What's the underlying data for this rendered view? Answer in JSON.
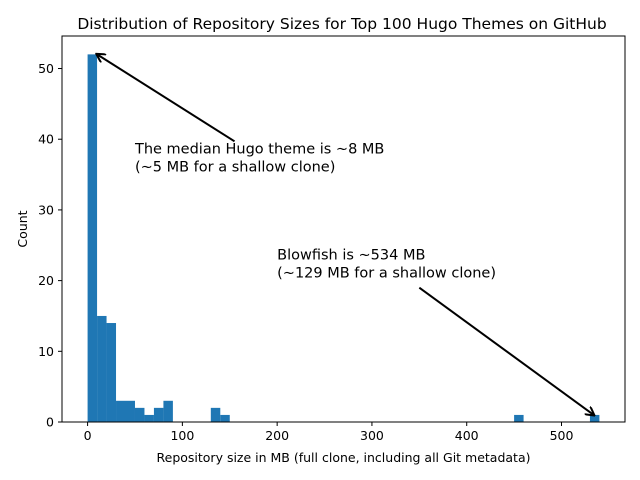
{
  "chart_data": {
    "type": "bar",
    "title": "Distribution of Repository Sizes for Top 100 Hugo Themes on GitHub",
    "xlabel": "Repository size in MB (full clone, including all Git metadata)",
    "ylabel": "Count",
    "xlim": [
      -27,
      567
    ],
    "ylim": [
      0,
      54.6
    ],
    "xticks": [
      0,
      100,
      200,
      300,
      400,
      500
    ],
    "yticks": [
      0,
      10,
      20,
      30,
      40,
      50
    ],
    "bar_color": "#1f77b4",
    "bin_width": 10,
    "bins": [
      {
        "start": 0,
        "count": 52
      },
      {
        "start": 10,
        "count": 15
      },
      {
        "start": 20,
        "count": 14
      },
      {
        "start": 30,
        "count": 3
      },
      {
        "start": 40,
        "count": 3
      },
      {
        "start": 50,
        "count": 2
      },
      {
        "start": 60,
        "count": 1
      },
      {
        "start": 70,
        "count": 2
      },
      {
        "start": 80,
        "count": 3
      },
      {
        "start": 130,
        "count": 2
      },
      {
        "start": 140,
        "count": 1
      },
      {
        "start": 450,
        "count": 1
      },
      {
        "start": 530,
        "count": 1
      }
    ],
    "annotations": [
      {
        "lines": [
          "The median Hugo theme is ~8 MB",
          "(~5 MB for a shallow clone)"
        ],
        "text_at": [
          50,
          38
        ],
        "arrow_tail": [
          155,
          39.7
        ],
        "arrow_head": [
          10,
          52
        ]
      },
      {
        "lines": [
          "Blowfish is ~534 MB",
          "(~129 MB for a shallow clone)"
        ],
        "text_at": [
          200,
          23
        ],
        "arrow_tail": [
          350,
          19
        ],
        "arrow_head": [
          534,
          1
        ]
      }
    ]
  }
}
